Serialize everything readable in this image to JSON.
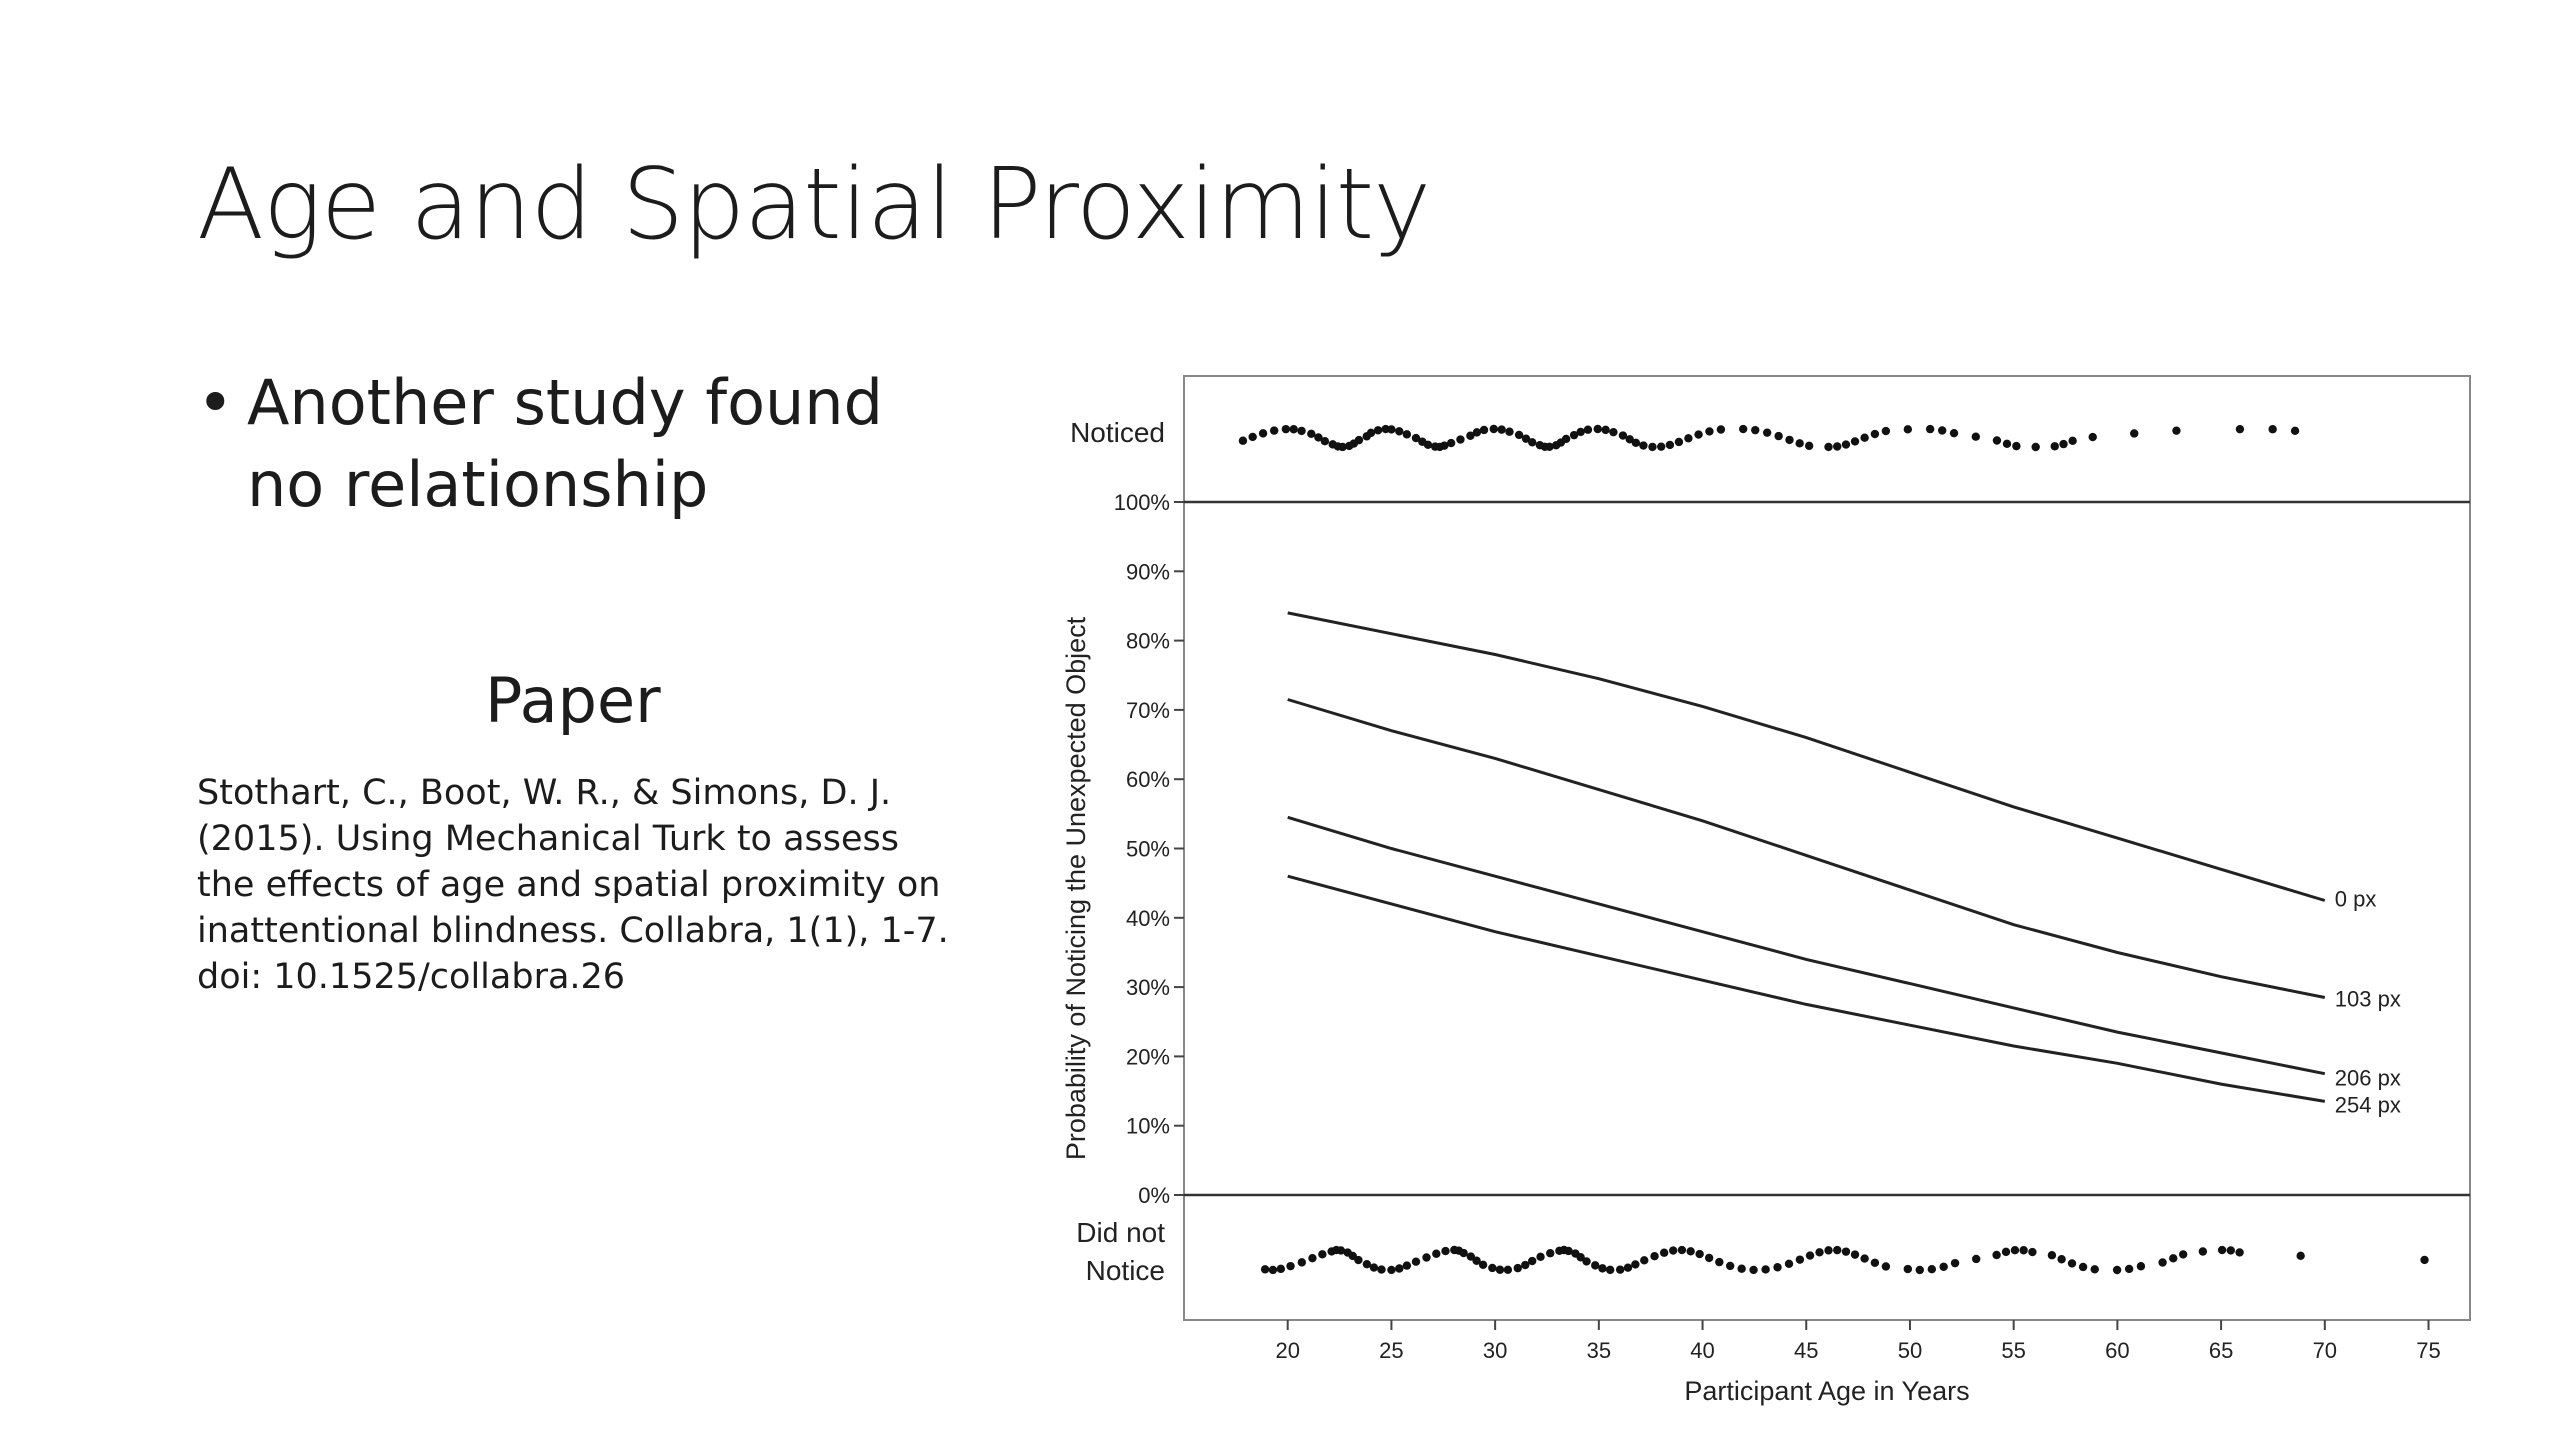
{
  "slide": {
    "title": "Age and Spatial Proximity",
    "bullets": [
      "Another study found no relationship"
    ],
    "paper_heading": "Paper",
    "citation_lines": [
      "Stothart, C., Boot, W. R., & Simons, D. J.",
      "(2015). Using Mechanical Turk to assess",
      "the effects of age and spatial proximity on",
      "inattentional blindness. Collabra, 1(1), 1-7.",
      "doi: 10.1525/collabra.26"
    ]
  },
  "chart_data": {
    "type": "line",
    "xlabel": "Participant Age in Years",
    "ylabel": "Probability of Noticing the Unexpected Object",
    "xlim": [
      15,
      77
    ],
    "ylim": [
      0,
      100
    ],
    "x_ticks": [
      20,
      25,
      30,
      35,
      40,
      45,
      50,
      55,
      60,
      65,
      70,
      75
    ],
    "y_ticks": [
      "0%",
      "10%",
      "20%",
      "30%",
      "40%",
      "50%",
      "60%",
      "70%",
      "80%",
      "90%",
      "100%"
    ],
    "y_tick_values": [
      0,
      10,
      20,
      30,
      40,
      50,
      60,
      70,
      80,
      90,
      100
    ],
    "grid": false,
    "legend": "inline line labels at right end of each curve",
    "x": [
      20,
      25,
      30,
      35,
      40,
      45,
      50,
      55,
      60,
      65,
      70
    ],
    "series": [
      {
        "name": "0 px",
        "values": [
          84,
          81,
          78,
          74.5,
          70.5,
          66,
          61,
          56,
          51.5,
          47,
          42.5
        ]
      },
      {
        "name": "103 px",
        "values": [
          71.5,
          67,
          63,
          58.5,
          54,
          49,
          44,
          39,
          35,
          31.5,
          28.5
        ]
      },
      {
        "name": "206 px",
        "values": [
          54.5,
          50,
          46,
          42,
          38,
          34,
          30.5,
          27,
          23.5,
          20.5,
          17.5
        ]
      },
      {
        "name": "254 px",
        "values": [
          46,
          42,
          38,
          34.5,
          31,
          27.5,
          24.5,
          21.5,
          19,
          16,
          13.5
        ]
      }
    ],
    "rug": {
      "top_label": "Noticed",
      "bottom_label": [
        "Did not",
        "Notice"
      ],
      "noticed_ages": [
        18,
        18.5,
        19,
        19.5,
        20,
        20.3,
        20.6,
        21,
        21.3,
        21.6,
        22,
        22.3,
        22.6,
        23,
        23.3,
        23.6,
        24,
        24.2,
        24.5,
        24.8,
        25,
        25.3,
        25.6,
        26,
        26.3,
        26.6,
        27,
        27.3,
        27.6,
        28,
        28.5,
        29,
        29.3,
        29.6,
        30,
        30.3,
        30.6,
        31,
        31.3,
        31.6,
        32,
        32.3,
        32.6,
        33,
        33.3,
        33.6,
        34,
        34.3,
        34.6,
        35,
        35.3,
        35.6,
        36,
        36.3,
        36.6,
        37,
        37.5,
        38,
        38.5,
        39,
        39.5,
        40,
        40.5,
        41,
        42,
        42.5,
        43,
        43.5,
        44,
        44.5,
        45,
        46,
        46.5,
        47,
        47.5,
        48,
        48.5,
        49,
        50,
        51,
        51.5,
        52,
        53,
        54,
        54.5,
        55,
        56,
        57,
        57.5,
        58,
        59,
        61,
        63,
        66,
        67.5,
        68.5
      ],
      "not_noticed_ages": [
        19,
        19.3,
        19.6,
        20,
        20.5,
        21,
        21.5,
        22,
        22.3,
        22.6,
        23,
        23.3,
        23.6,
        24,
        24.3,
        24.6,
        25,
        25.3,
        25.6,
        26,
        26.5,
        27,
        27.5,
        28,
        28.3,
        28.6,
        29,
        29.3,
        29.6,
        30,
        30.3,
        30.6,
        31,
        31.3,
        31.6,
        32,
        32.5,
        33,
        33.3,
        33.6,
        34,
        34.3,
        34.6,
        35,
        35.3,
        35.6,
        36,
        36.3,
        36.6,
        37,
        37.5,
        38,
        38.5,
        39,
        39.5,
        40,
        40.5,
        41,
        41.5,
        42,
        42.5,
        43,
        43.5,
        44,
        44.5,
        45,
        45.5,
        46,
        46.5,
        47,
        47.5,
        48,
        48.5,
        49,
        50,
        50.5,
        51,
        51.5,
        52,
        53,
        54,
        54.5,
        55,
        55.5,
        56,
        57,
        57.5,
        58,
        58.5,
        59,
        60,
        60.5,
        61,
        62,
        62.5,
        63,
        64,
        65,
        65.5,
        66,
        69,
        75
      ]
    }
  }
}
